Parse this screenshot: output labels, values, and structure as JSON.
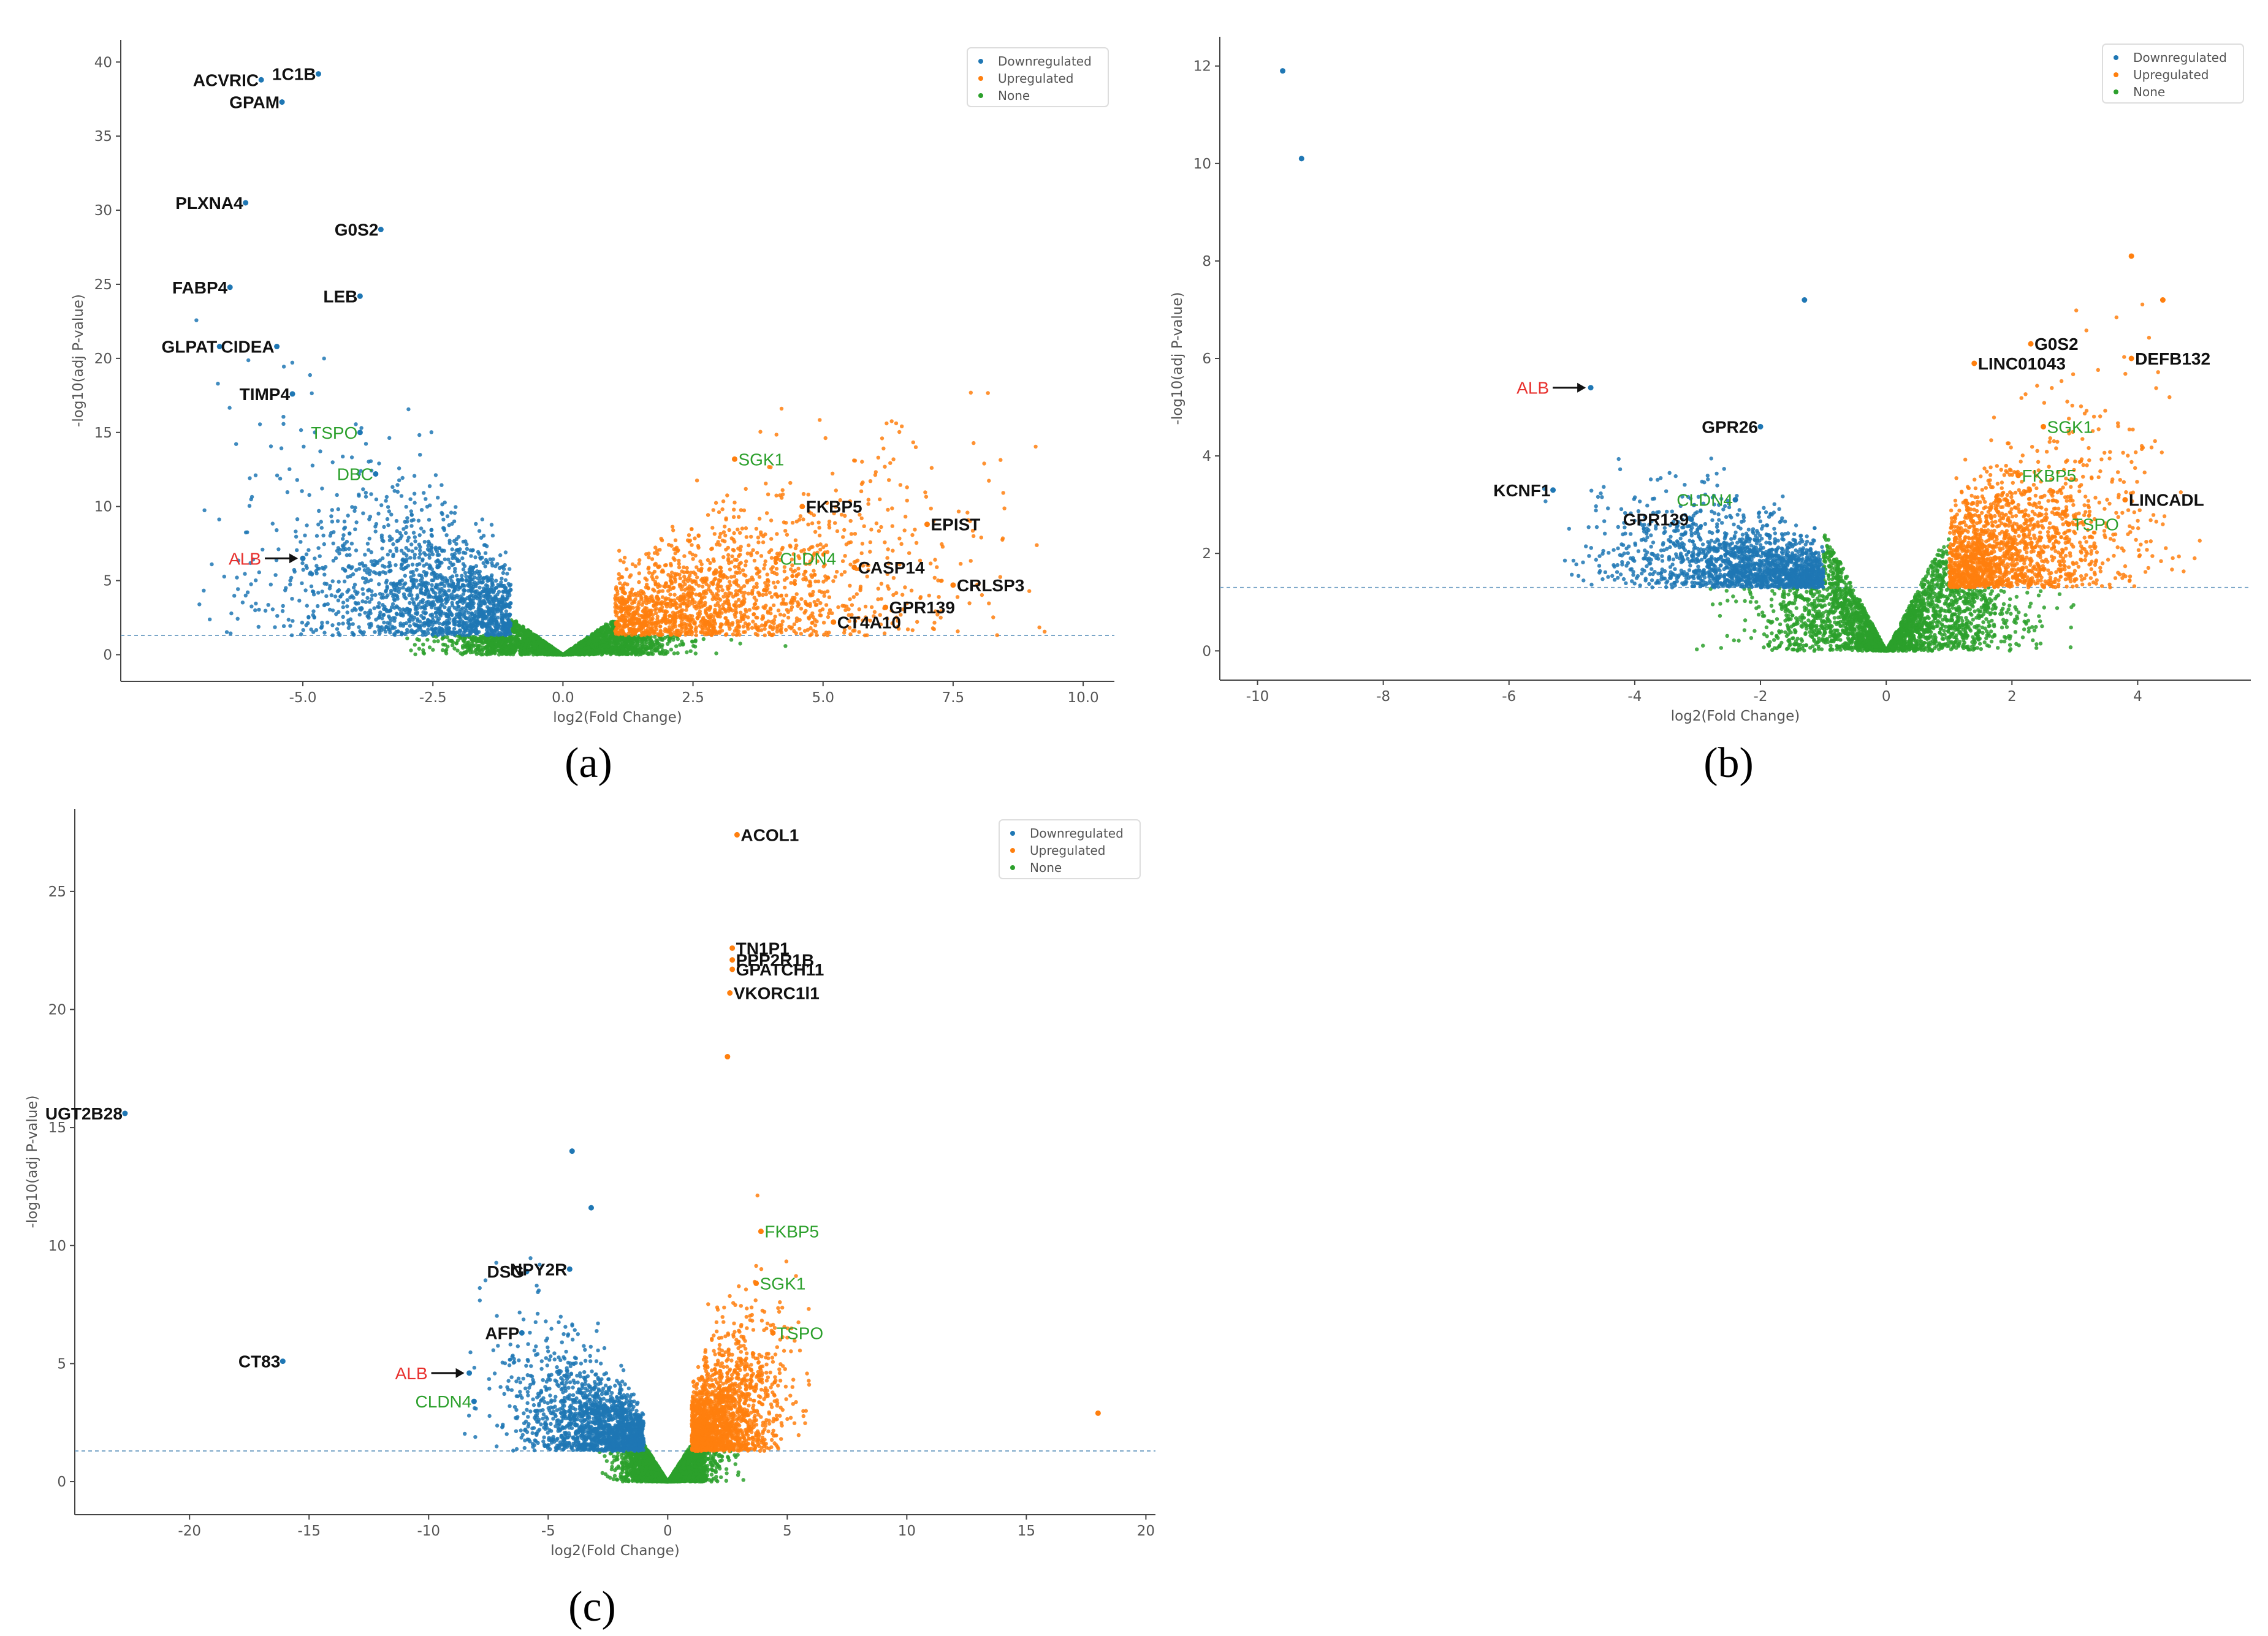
{
  "colors": {
    "down": "#1f77b4",
    "up": "#ff7f0e",
    "none": "#2ca02c",
    "highlight": "#e8312e",
    "label": "#111111",
    "threshold": "#7aa6c8"
  },
  "chart_data": [
    {
      "type": "scatter",
      "panel_label": "(a)",
      "xlabel": "log2(Fold Change)",
      "ylabel": "-log10(adj P-value)",
      "xlim": [
        -8.5,
        10.6
      ],
      "ylim": [
        -1.8,
        41.5
      ],
      "xticks": [
        -5.0,
        -2.5,
        0.0,
        2.5,
        5.0,
        7.5,
        10.0
      ],
      "xtick_labels": [
        "-5.0",
        "-2.5",
        "0.0",
        "2.5",
        "5.0",
        "7.5",
        "10.0"
      ],
      "yticks": [
        0,
        5,
        10,
        15,
        20,
        25,
        30,
        35,
        40
      ],
      "ytick_labels": [
        "0",
        "5",
        "10",
        "15",
        "20",
        "25",
        "30",
        "35",
        "40"
      ],
      "threshold_y": 1.3,
      "fc_cut": 1,
      "spread": {
        "down_min": -7.2,
        "up_max": 9.5,
        "down_ymax": 27,
        "up_ymax": 18
      },
      "legend": {
        "position": "top-right",
        "entries": [
          "Downregulated",
          "Upregulated",
          "None"
        ]
      },
      "highlights": [
        {
          "label": "ACVRIC",
          "x": -5.8,
          "y": 38.8,
          "category": "down",
          "color": "label"
        },
        {
          "label": "1C1B",
          "x": -4.7,
          "y": 39.2,
          "category": "down",
          "color": "label"
        },
        {
          "label": "GPAM",
          "x": -5.4,
          "y": 37.3,
          "category": "down",
          "color": "label"
        },
        {
          "label": "PLXNA4",
          "x": -6.1,
          "y": 30.5,
          "category": "down",
          "color": "label"
        },
        {
          "label": "G0S2",
          "x": -3.5,
          "y": 28.7,
          "category": "down",
          "color": "label"
        },
        {
          "label": "FABP4",
          "x": -6.4,
          "y": 24.8,
          "category": "down",
          "color": "label"
        },
        {
          "label": "LEB",
          "x": -3.9,
          "y": 24.2,
          "category": "down",
          "color": "label"
        },
        {
          "label": "GLPAT",
          "x": -6.6,
          "y": 20.8,
          "category": "down",
          "color": "label"
        },
        {
          "label": "CIDEA",
          "x": -5.5,
          "y": 20.8,
          "category": "down",
          "color": "label"
        },
        {
          "label": "TIMP4",
          "x": -5.2,
          "y": 17.6,
          "category": "down",
          "color": "label"
        },
        {
          "label": "TSPO",
          "x": -3.9,
          "y": 15.0,
          "category": "down",
          "color": "none"
        },
        {
          "label": "DBC",
          "x": -3.6,
          "y": 12.2,
          "category": "down",
          "color": "none"
        },
        {
          "label": "ALB",
          "x": -5.0,
          "y": 6.5,
          "category": "down",
          "color": "highlight",
          "arrow": true
        },
        {
          "label": "SGK1",
          "x": 3.3,
          "y": 13.2,
          "category": "up",
          "color": "none"
        },
        {
          "label": "FKBP5",
          "x": 4.6,
          "y": 10.0,
          "category": "up",
          "color": "label"
        },
        {
          "label": "EPIST",
          "x": 7.0,
          "y": 8.8,
          "category": "up",
          "color": "label"
        },
        {
          "label": "CLDN4",
          "x": 4.1,
          "y": 6.5,
          "category": "up",
          "color": "none"
        },
        {
          "label": "CASP14",
          "x": 5.6,
          "y": 5.9,
          "category": "up",
          "color": "label"
        },
        {
          "label": "CRLSP3",
          "x": 7.5,
          "y": 4.7,
          "category": "up",
          "color": "label"
        },
        {
          "label": "GPR139",
          "x": 6.2,
          "y": 3.2,
          "category": "up",
          "color": "label"
        },
        {
          "label": "CT4A10",
          "x": 5.2,
          "y": 2.2,
          "category": "up",
          "color": "label"
        }
      ]
    },
    {
      "type": "scatter",
      "panel_label": "(b)",
      "xlabel": "log2(Fold Change)",
      "ylabel": "-log10(adj P-value)",
      "xlim": [
        -10.6,
        5.8
      ],
      "ylim": [
        -0.6,
        12.6
      ],
      "xticks": [
        -10,
        -8,
        -6,
        -4,
        -2,
        0,
        2,
        4
      ],
      "xtick_labels": [
        "-10",
        "-8",
        "-6",
        "-4",
        "-2",
        "0",
        "2",
        "4"
      ],
      "yticks": [
        0,
        2,
        4,
        6,
        8,
        10,
        12
      ],
      "ytick_labels": [
        "0",
        "2",
        "4",
        "6",
        "8",
        "10",
        "12"
      ],
      "threshold_y": 1.3,
      "fc_cut": 1,
      "spread": {
        "down_min": -5.5,
        "up_max": 5.0,
        "down_ymax": 5,
        "up_ymax": 8
      },
      "legend": {
        "position": "top-right",
        "entries": [
          "Downregulated",
          "Upregulated",
          "None"
        ]
      },
      "highlights": [
        {
          "label": "ALB",
          "x": -4.7,
          "y": 5.4,
          "category": "down",
          "color": "highlight",
          "arrow": true
        },
        {
          "label": "GPR26",
          "x": -2.0,
          "y": 4.6,
          "category": "down",
          "color": "label"
        },
        {
          "label": "KCNF1",
          "x": -5.3,
          "y": 3.3,
          "category": "down",
          "color": "label"
        },
        {
          "label": "CLDN4",
          "x": -2.4,
          "y": 3.1,
          "category": "down",
          "color": "none"
        },
        {
          "label": "GPR139",
          "x": -3.1,
          "y": 2.7,
          "category": "down",
          "color": "label"
        },
        {
          "label": "LINC01043",
          "x": 1.4,
          "y": 5.9,
          "category": "up",
          "color": "label"
        },
        {
          "label": "G0S2",
          "x": 2.3,
          "y": 6.3,
          "category": "up",
          "color": "label"
        },
        {
          "label": "DEFB132",
          "x": 3.9,
          "y": 6.0,
          "category": "up",
          "color": "label"
        },
        {
          "label": "SGK1",
          "x": 2.5,
          "y": 4.6,
          "category": "up",
          "color": "none"
        },
        {
          "label": "FKBP5",
          "x": 2.1,
          "y": 3.6,
          "category": "up",
          "color": "none"
        },
        {
          "label": "LINCADL",
          "x": 3.8,
          "y": 3.1,
          "category": "up",
          "color": "label"
        },
        {
          "label": "TSPO",
          "x": 2.9,
          "y": 2.6,
          "category": "up",
          "color": "none"
        },
        {
          "label": "",
          "x": -9.6,
          "y": 11.9,
          "category": "down"
        },
        {
          "label": "",
          "x": -9.3,
          "y": 10.1,
          "category": "down"
        },
        {
          "label": "",
          "x": -1.3,
          "y": 7.2,
          "category": "down"
        },
        {
          "label": "",
          "x": 3.9,
          "y": 8.1,
          "category": "up"
        },
        {
          "label": "",
          "x": 4.4,
          "y": 7.2,
          "category": "up"
        }
      ]
    },
    {
      "type": "scatter",
      "panel_label": "(c)",
      "xlabel": "log2(Fold Change)",
      "ylabel": "-log10(adj P-value)",
      "xlim": [
        -24.8,
        20.4
      ],
      "ylim": [
        -1.4,
        28.5
      ],
      "xticks": [
        -20,
        -15,
        -10,
        -5,
        0,
        5,
        10,
        15,
        20
      ],
      "xtick_labels": [
        "-20",
        "-15",
        "-10",
        "-5",
        "0",
        "5",
        "10",
        "15",
        "20"
      ],
      "yticks": [
        0,
        5,
        10,
        15,
        20,
        25
      ],
      "ytick_labels": [
        "0",
        "5",
        "10",
        "15",
        "20",
        "25"
      ],
      "threshold_y": 1.3,
      "fc_cut": 1,
      "spread": {
        "down_min": -8.5,
        "up_max": 6.0,
        "down_ymax": 10,
        "up_ymax": 13
      },
      "legend": {
        "position": "top-right",
        "entries": [
          "Downregulated",
          "Upregulated",
          "None"
        ]
      },
      "highlights": [
        {
          "label": "ACOL1",
          "x": 2.9,
          "y": 27.4,
          "category": "up",
          "color": "label"
        },
        {
          "label": "TN1P1",
          "x": 2.7,
          "y": 22.6,
          "category": "up",
          "color": "label"
        },
        {
          "label": "PPP2R1B",
          "x": 2.7,
          "y": 22.1,
          "category": "up",
          "color": "label"
        },
        {
          "label": "GPATCH11",
          "x": 2.7,
          "y": 21.7,
          "category": "up",
          "color": "label"
        },
        {
          "label": "VKORC1l1",
          "x": 2.6,
          "y": 20.7,
          "category": "up",
          "color": "label"
        },
        {
          "label": "UGT2B28",
          "x": -22.7,
          "y": 15.6,
          "category": "down",
          "color": "label"
        },
        {
          "label": "FKBP5",
          "x": 3.9,
          "y": 10.6,
          "category": "up",
          "color": "none"
        },
        {
          "label": "DSG",
          "x": -5.9,
          "y": 8.9,
          "category": "down",
          "color": "label"
        },
        {
          "label": "NPY2R",
          "x": -4.1,
          "y": 9.0,
          "category": "down",
          "color": "label"
        },
        {
          "label": "SGK1",
          "x": 3.7,
          "y": 8.4,
          "category": "up",
          "color": "none"
        },
        {
          "label": "AFP",
          "x": -6.1,
          "y": 6.3,
          "category": "down",
          "color": "label"
        },
        {
          "label": "TSPO",
          "x": 4.4,
          "y": 6.3,
          "category": "up",
          "color": "none"
        },
        {
          "label": "CT83",
          "x": -16.1,
          "y": 5.1,
          "category": "down",
          "color": "label"
        },
        {
          "label": "ALB",
          "x": -8.3,
          "y": 4.6,
          "category": "down",
          "color": "highlight",
          "arrow": true
        },
        {
          "label": "CLDN4",
          "x": -8.1,
          "y": 3.4,
          "category": "down",
          "color": "none"
        },
        {
          "label": "",
          "x": -4.0,
          "y": 14.0,
          "category": "down"
        },
        {
          "label": "",
          "x": -3.2,
          "y": 11.6,
          "category": "down"
        },
        {
          "label": "",
          "x": 2.5,
          "y": 18.0,
          "category": "up"
        },
        {
          "label": "",
          "x": 18.0,
          "y": 2.9,
          "category": "up"
        }
      ]
    }
  ]
}
